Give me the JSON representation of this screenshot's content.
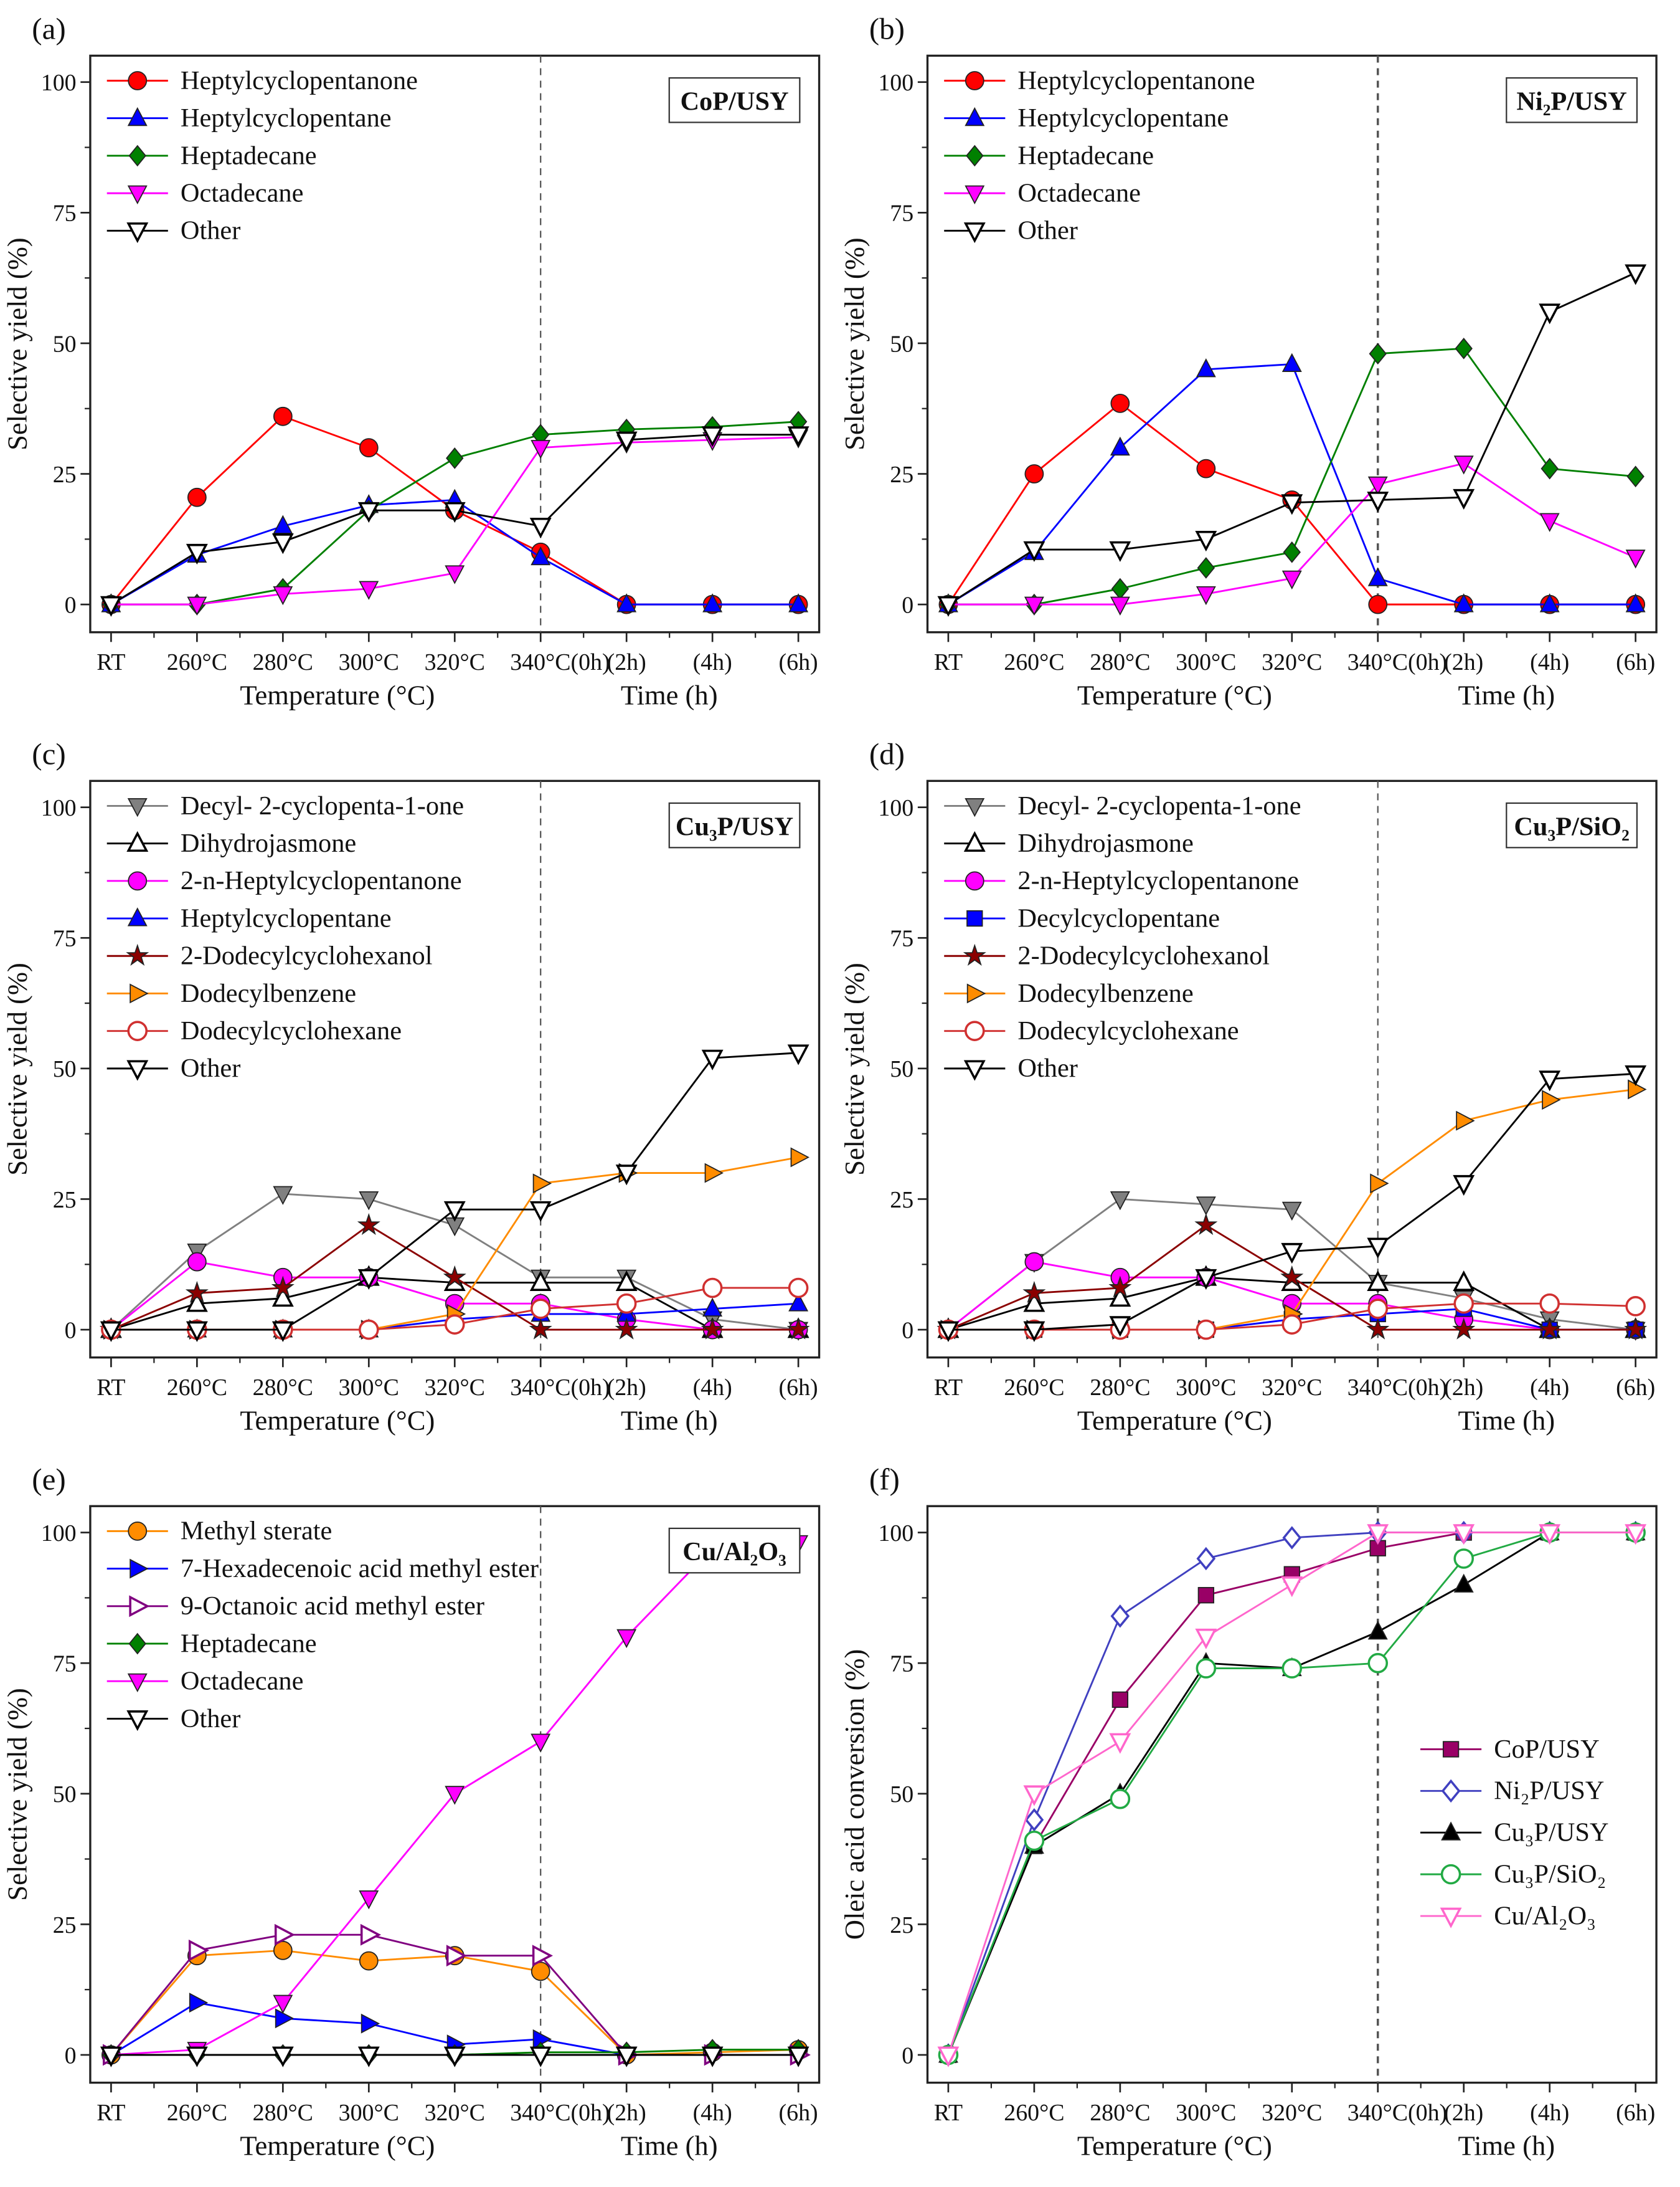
{
  "chart_data": [
    {
      "type": "line",
      "panel_label": "(a)",
      "catalyst_label": "CoP/USY",
      "categories": [
        "RT",
        "260°C",
        "280°C",
        "300°C",
        "320°C",
        "340°C(0h)",
        "(2h)",
        "(4h)",
        "(6h)"
      ],
      "xlabel_temperature": "Temperature (°C)",
      "xlabel_time": "Time (h)",
      "ylabel": "Selective yield (%)",
      "ylim": [
        0,
        100
      ],
      "yticks": [
        "0",
        "25",
        "50",
        "75",
        "100"
      ],
      "legend": "top-left",
      "series": [
        {
          "name": "Heptylcyclopentanone",
          "color": "#ff0000",
          "marker": "circle",
          "values": [
            0,
            20.5,
            36,
            30,
            18,
            10,
            0,
            0,
            0
          ]
        },
        {
          "name": "Heptylcyclopentane",
          "color": "#0000ff",
          "marker": "triangle-up",
          "values": [
            0,
            9.5,
            15,
            19,
            20,
            9,
            0,
            0,
            0
          ]
        },
        {
          "name": "Heptadecane",
          "color": "#008000",
          "marker": "diamond",
          "values": [
            0,
            0,
            3,
            18,
            28,
            32.5,
            33.5,
            34,
            35
          ]
        },
        {
          "name": "Octadecane",
          "color": "#ff00ff",
          "marker": "triangle-down",
          "values": [
            0,
            0,
            2,
            3,
            6,
            30,
            31,
            31.5,
            32
          ]
        },
        {
          "name": "Other",
          "color": "#000000",
          "marker": "triangle-down-open",
          "values": [
            0,
            10,
            12,
            18,
            18,
            15,
            31.5,
            32.5,
            32.5
          ]
        }
      ]
    },
    {
      "type": "line",
      "panel_label": "(b)",
      "catalyst_label": "Ni₂P/USY",
      "categories": [
        "RT",
        "260°C",
        "280°C",
        "300°C",
        "320°C",
        "340°C(0h)",
        "(2h)",
        "(4h)",
        "(6h)"
      ],
      "xlabel_temperature": "Temperature (°C)",
      "xlabel_time": "Time (h)",
      "ylabel": "Selective yield (%)",
      "ylim": [
        0,
        100
      ],
      "yticks": [
        "0",
        "25",
        "50",
        "75",
        "100"
      ],
      "legend": "top-left",
      "series": [
        {
          "name": "Heptylcyclopentanone",
          "color": "#ff0000",
          "marker": "circle",
          "values": [
            0,
            25,
            38.5,
            26,
            20,
            0,
            0,
            0,
            0
          ]
        },
        {
          "name": "Heptylcyclopentane",
          "color": "#0000ff",
          "marker": "triangle-up",
          "values": [
            0,
            10,
            30,
            45,
            46,
            5,
            0,
            0,
            0
          ]
        },
        {
          "name": "Heptadecane",
          "color": "#008000",
          "marker": "diamond",
          "values": [
            0,
            0,
            3,
            7,
            10,
            48,
            49,
            26,
            24.5
          ]
        },
        {
          "name": "Octadecane",
          "color": "#ff00ff",
          "marker": "triangle-down",
          "values": [
            0,
            0,
            0,
            2,
            5,
            23,
            27,
            16,
            9
          ]
        },
        {
          "name": "Other",
          "color": "#000000",
          "marker": "triangle-down-open",
          "values": [
            0,
            10.5,
            10.5,
            12.5,
            19.5,
            20,
            20.5,
            56,
            63.5
          ]
        }
      ]
    },
    {
      "type": "line",
      "panel_label": "(c)",
      "catalyst_label": "Cu₃P/USY",
      "categories": [
        "RT",
        "260°C",
        "280°C",
        "300°C",
        "320°C",
        "340°C(0h)",
        "(2h)",
        "(4h)",
        "(6h)"
      ],
      "xlabel_temperature": "Temperature (°C)",
      "xlabel_time": "Time (h)",
      "ylabel": "Selective yield (%)",
      "ylim": [
        0,
        100
      ],
      "yticks": [
        "0",
        "25",
        "50",
        "75",
        "100"
      ],
      "legend": "top-left",
      "series": [
        {
          "name": "Decyl- 2-cyclopenta-1-one",
          "color": "#808080",
          "marker": "triangle-down",
          "values": [
            0,
            15,
            26,
            25,
            20,
            10,
            10,
            2,
            0
          ]
        },
        {
          "name": "Dihydrojasmone",
          "color": "#000000",
          "marker": "triangle-up-open",
          "values": [
            0,
            5,
            6,
            10,
            9,
            9,
            9,
            0,
            0
          ]
        },
        {
          "name": "2-n-Heptylcyclopentanone",
          "color": "#ff00ff",
          "marker": "circle",
          "values": [
            0,
            13,
            10,
            10,
            5,
            5,
            2,
            0,
            0
          ]
        },
        {
          "name": "Heptylcyclopentane",
          "color": "#0000ff",
          "marker": "triangle-up",
          "values": [
            0,
            0,
            0,
            0,
            2,
            3,
            3,
            4,
            5
          ]
        },
        {
          "name": "2-Dodecylcyclohexanol",
          "color": "#8b0000",
          "marker": "star",
          "values": [
            0,
            7,
            8,
            20,
            10,
            0,
            0,
            0,
            0
          ]
        },
        {
          "name": "Dodecylbenzene",
          "color": "#ff8c00",
          "marker": "triangle-right",
          "values": [
            0,
            0,
            0,
            0,
            3,
            28,
            30,
            30,
            33
          ]
        },
        {
          "name": "Dodecylcyclohexane",
          "color": "#d03030",
          "marker": "circle-open",
          "values": [
            0,
            0,
            0,
            0,
            1,
            4,
            5,
            8,
            8
          ]
        },
        {
          "name": "Other",
          "color": "#000000",
          "marker": "triangle-down-open",
          "values": [
            0,
            0,
            0,
            10,
            23,
            23,
            30,
            52,
            53
          ]
        }
      ]
    },
    {
      "type": "line",
      "panel_label": "(d)",
      "catalyst_label": "Cu₃P/SiO₂",
      "categories": [
        "RT",
        "260°C",
        "280°C",
        "300°C",
        "320°C",
        "340°C(0h)",
        "(2h)",
        "(4h)",
        "(6h)"
      ],
      "xlabel_temperature": "Temperature (°C)",
      "xlabel_time": "Time (h)",
      "ylabel": "Selective yield (%)",
      "ylim": [
        0,
        100
      ],
      "yticks": [
        "0",
        "25",
        "50",
        "75",
        "100"
      ],
      "legend": "top-left",
      "series": [
        {
          "name": "Decyl- 2-cyclopenta-1-one",
          "color": "#808080",
          "marker": "triangle-down",
          "values": [
            0,
            13,
            25,
            24,
            23,
            9,
            6,
            2,
            0
          ]
        },
        {
          "name": "Dihydrojasmone",
          "color": "#000000",
          "marker": "triangle-up-open",
          "values": [
            0,
            5,
            6,
            10,
            9,
            9,
            9,
            0,
            0
          ]
        },
        {
          "name": "2-n-Heptylcyclopentanone",
          "color": "#ff00ff",
          "marker": "circle",
          "values": [
            0,
            13,
            10,
            10,
            5,
            5,
            2,
            0,
            0
          ]
        },
        {
          "name": "Decylcyclopentane",
          "color": "#0000ff",
          "marker": "square",
          "values": [
            0,
            0,
            0,
            0,
            2,
            3,
            4,
            0,
            0
          ]
        },
        {
          "name": "2-Dodecylcyclohexanol",
          "color": "#8b0000",
          "marker": "star",
          "values": [
            0,
            7,
            8,
            20,
            10,
            0,
            0,
            0,
            0
          ]
        },
        {
          "name": "Dodecylbenzene",
          "color": "#ff8c00",
          "marker": "triangle-right",
          "values": [
            0,
            0,
            0,
            0,
            3,
            28,
            40,
            44,
            46
          ]
        },
        {
          "name": "Dodecylcyclohexane",
          "color": "#d03030",
          "marker": "circle-open",
          "values": [
            0,
            0,
            0,
            0,
            1,
            4,
            5,
            5,
            4.5
          ]
        },
        {
          "name": "Other",
          "color": "#000000",
          "marker": "triangle-down-open",
          "values": [
            0,
            0,
            1,
            10,
            15,
            16,
            28,
            48,
            49
          ]
        }
      ]
    },
    {
      "type": "line",
      "panel_label": "(e)",
      "catalyst_label": "Cu/Al₂O₃",
      "categories": [
        "RT",
        "260°C",
        "280°C",
        "300°C",
        "320°C",
        "340°C(0h)",
        "(2h)",
        "(4h)",
        "(6h)"
      ],
      "xlabel_temperature": "Temperature (°C)",
      "xlabel_time": "Time (h)",
      "ylabel": "Selective yield (%)",
      "ylim": [
        0,
        100
      ],
      "yticks": [
        "0",
        "25",
        "50",
        "75",
        "100"
      ],
      "legend": "top-left",
      "series": [
        {
          "name": "Methyl sterate",
          "color": "#ff8c00",
          "marker": "circle",
          "values": [
            0,
            19,
            20,
            18,
            19,
            16,
            0,
            0.5,
            1
          ]
        },
        {
          "name": "7-Hexadecenoic acid methyl ester",
          "color": "#0000ff",
          "marker": "triangle-right",
          "values": [
            0,
            10,
            7,
            6,
            2,
            3,
            0,
            0,
            0
          ]
        },
        {
          "name": "9-Octanoic acid methyl ester",
          "color": "#800080",
          "marker": "triangle-right-open",
          "values": [
            0,
            20,
            23,
            23,
            19,
            19,
            0,
            0,
            0
          ]
        },
        {
          "name": "Heptadecane",
          "color": "#008000",
          "marker": "diamond",
          "values": [
            0,
            0,
            0,
            0,
            0,
            0.5,
            0.5,
            1,
            1
          ]
        },
        {
          "name": "Octadecane",
          "color": "#ff00ff",
          "marker": "triangle-down",
          "values": [
            0,
            1,
            10,
            30,
            50,
            60,
            80,
            97,
            98
          ]
        },
        {
          "name": "Other",
          "color": "#000000",
          "marker": "triangle-down-open",
          "values": [
            0,
            0,
            0,
            0,
            0,
            0,
            0,
            0,
            0
          ]
        }
      ]
    },
    {
      "type": "line",
      "panel_label": "(f)",
      "catalyst_label": "",
      "categories": [
        "RT",
        "260°C",
        "280°C",
        "300°C",
        "320°C",
        "340°C(0h)",
        "(2h)",
        "(4h)",
        "(6h)"
      ],
      "xlabel_temperature": "Temperature (°C)",
      "xlabel_time": "Time (h)",
      "ylabel": "Oleic acid conversion (%)",
      "ylim": [
        0,
        100
      ],
      "yticks": [
        "0",
        "25",
        "50",
        "75",
        "100"
      ],
      "legend": "right",
      "series": [
        {
          "name": "CoP/USY",
          "color": "#990066",
          "marker": "square",
          "values": [
            0,
            40,
            68,
            88,
            92,
            97,
            100,
            100,
            100
          ]
        },
        {
          "name": "Ni₂P/USY",
          "color": "#4040c0",
          "marker": "diamond-open",
          "values": [
            0,
            45,
            84,
            95,
            99,
            100,
            100,
            100,
            100
          ]
        },
        {
          "name": "Cu₃P/USY",
          "color": "#000000",
          "marker": "triangle-up",
          "values": [
            0,
            40,
            50,
            75,
            74,
            81,
            90,
            100,
            100
          ]
        },
        {
          "name": "Cu₃P/SiO₂",
          "color": "#22aa44",
          "marker": "circle-open",
          "values": [
            0,
            41,
            49,
            74,
            74,
            75,
            95,
            100,
            100
          ]
        },
        {
          "name": "Cu/Al₂O₃",
          "color": "#ff66cc",
          "marker": "triangle-down-open",
          "values": [
            0,
            50,
            60,
            80,
            90,
            100,
            100,
            100,
            100
          ]
        }
      ]
    }
  ]
}
